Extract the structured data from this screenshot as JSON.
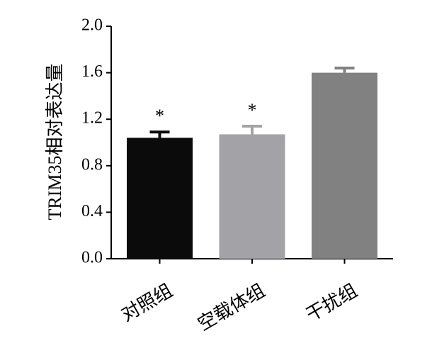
{
  "chart_data": {
    "type": "bar",
    "y_label": "TRIM35相对表达量",
    "categories": [
      "对照组",
      "空载体组",
      "干扰组"
    ],
    "values": [
      1.04,
      1.07,
      1.6
    ],
    "errors": [
      0.05,
      0.07,
      0.04
    ],
    "colors": [
      "#0b0b0b",
      "#a3a3a7",
      "#818181"
    ],
    "annotations": [
      "*",
      "*",
      null
    ],
    "ylim": [
      0,
      2
    ],
    "yticks": [
      {
        "value": 0,
        "label": "0.0"
      },
      0.4,
      0.8,
      1.2,
      1.6,
      {
        "value": 2,
        "label": "2.0"
      }
    ]
  }
}
